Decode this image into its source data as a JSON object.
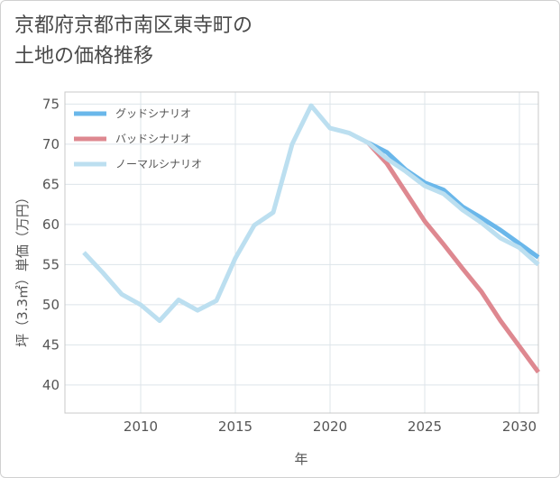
{
  "title_line1": "京都府京都市南区東寺町の",
  "title_line2": "土地の価格推移",
  "chart_data": {
    "type": "line",
    "title": "京都府京都市南区東寺町の土地の価格推移",
    "xlabel": "年",
    "ylabel": "坪（3.3㎡）単価（万円）",
    "xlim": [
      2006.0,
      2031.0
    ],
    "ylim": [
      36.5,
      76.5
    ],
    "xticks": [
      2010,
      2015,
      2020,
      2025,
      2030
    ],
    "yticks": [
      40,
      45,
      50,
      55,
      60,
      65,
      70,
      75
    ],
    "grid": true,
    "legend_position": "top-left",
    "series": [
      {
        "name": "グッドシナリオ",
        "color": "#6ab7ea",
        "x": [
          2022,
          2023,
          2024,
          2025,
          2026,
          2027,
          2028,
          2029,
          2030,
          2031
        ],
        "y": [
          70.2,
          69.0,
          66.8,
          65.2,
          64.3,
          62.2,
          60.8,
          59.3,
          57.6,
          55.9
        ]
      },
      {
        "name": "バッドシナリオ",
        "color": "#de8890",
        "x": [
          2022,
          2023,
          2024,
          2025,
          2026,
          2027,
          2028,
          2029,
          2030,
          2031
        ],
        "y": [
          70.2,
          67.6,
          64.0,
          60.4,
          57.5,
          54.5,
          51.6,
          48.0,
          44.8,
          41.6
        ]
      },
      {
        "name": "ノーマルシナリオ",
        "color": "#bcdff0",
        "x": [
          2007,
          2008,
          2009,
          2010,
          2011,
          2012,
          2013,
          2014,
          2015,
          2016,
          2017,
          2018,
          2019,
          2020,
          2021,
          2022,
          2023,
          2024,
          2025,
          2026,
          2027,
          2028,
          2029,
          2030,
          2031
        ],
        "y": [
          56.5,
          54.0,
          51.3,
          50.0,
          48.0,
          50.6,
          49.3,
          50.5,
          55.8,
          59.9,
          61.5,
          70.0,
          74.8,
          72.0,
          71.4,
          70.2,
          68.2,
          66.6,
          64.8,
          63.8,
          61.8,
          60.2,
          58.3,
          57.1,
          55.0
        ]
      }
    ]
  }
}
